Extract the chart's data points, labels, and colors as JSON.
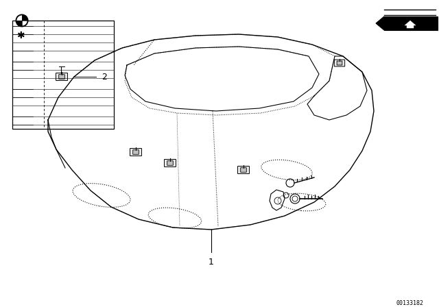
{
  "background_color": "#ffffff",
  "line_color": "#000000",
  "text_color": "#000000",
  "part_number": "00133182",
  "label_1": "1",
  "label_2": "2",
  "fig_width": 6.4,
  "fig_height": 4.48,
  "dpi": 100
}
